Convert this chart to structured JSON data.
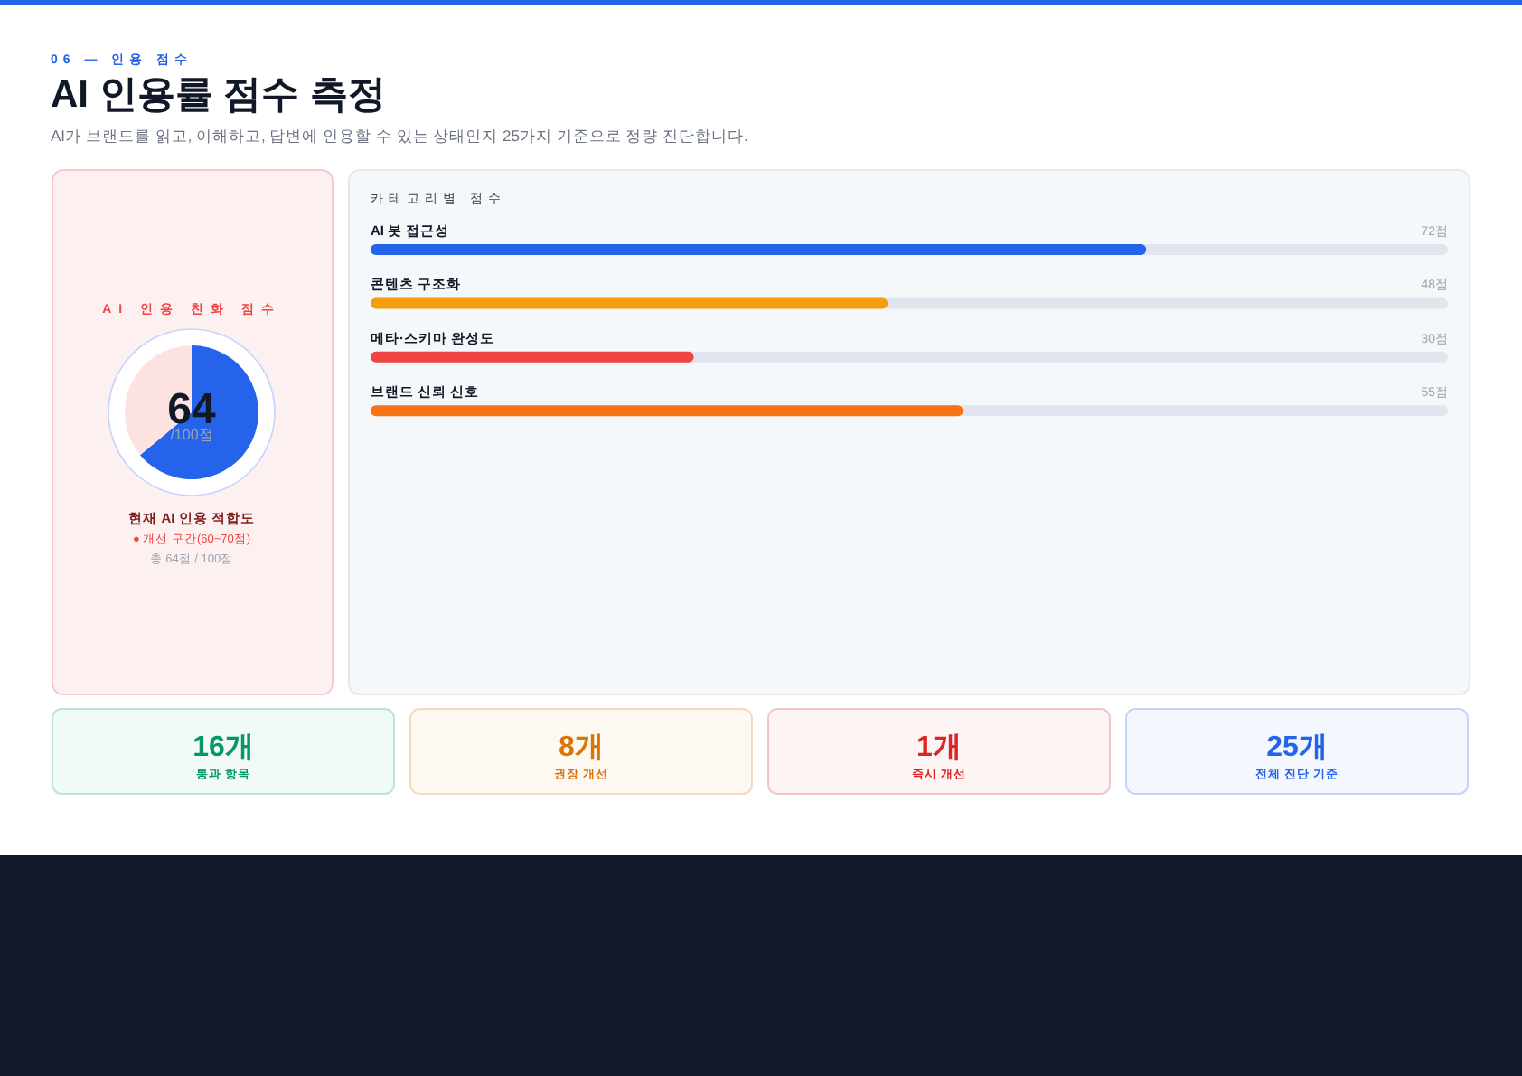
{
  "chart_data": [
    {
      "type": "other",
      "title": "AI 인용률 점수 측정",
      "subtitle": "AI가 브랜드를 읽고, 이해하고, 답변에 인용할 수 있는 상태인지 25가지 기준으로 정량 진단합니다.",
      "annotations": [
        "06 — 인용 점수"
      ]
    },
    {
      "type": "pie",
      "title": "AI 인용 친화 점수",
      "categories": [
        null,
        null
      ],
      "values": [
        64,
        36
      ],
      "colors": [
        "#2563eb",
        "#fde2e2"
      ],
      "annotations": [
        "64",
        "/100점",
        "현재 AI 인용 적합도",
        "● 개선 구간(60~70점)",
        "총 64점 / 100점"
      ]
    },
    {
      "type": "bar",
      "orientation": "horizontal",
      "title": "카테고리별 점수",
      "categories": [
        "AI 봇 접근성",
        "콘텐츠 구조화",
        "메타·스키마 완성도",
        "브랜드 신뢰 신호"
      ],
      "values": [
        72,
        48,
        30,
        55
      ],
      "colors": [
        "#2563eb",
        "#f59e0b",
        "#ef4444",
        "#f97316"
      ],
      "value_labels": [
        "72점",
        "48점",
        "30점",
        "55점"
      ],
      "xlim": [
        0,
        100
      ]
    },
    {
      "type": "other",
      "categories": [
        "통과 항목",
        "권장 개선",
        "즉시 개선",
        "전체 진단 기준"
      ],
      "values": [
        16,
        8,
        1,
        25
      ],
      "value_labels": [
        "16개",
        "8개",
        "1개",
        "25개"
      ],
      "colors": [
        "#059669",
        "#d97706",
        "#dc2626",
        "#2563eb"
      ]
    }
  ]
}
